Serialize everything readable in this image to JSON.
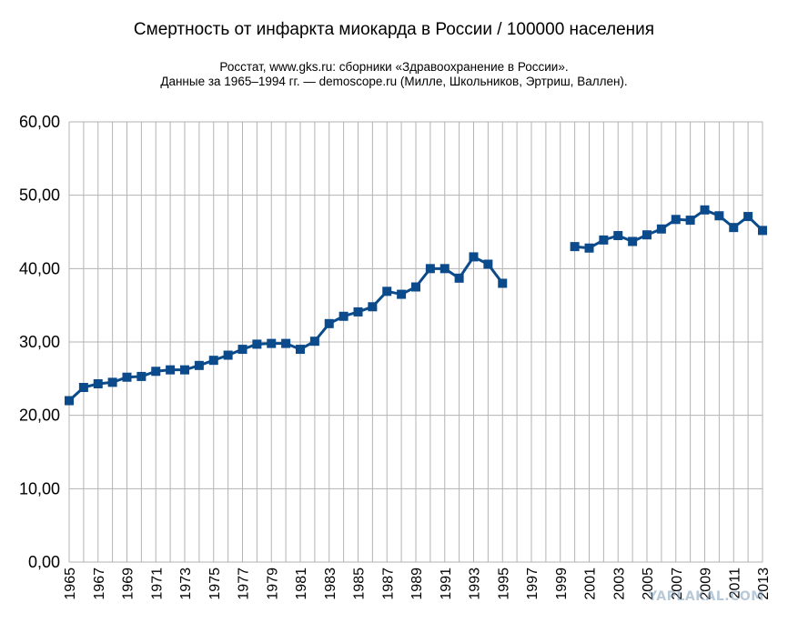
{
  "chart_data": {
    "type": "line",
    "title": "Смертность от инфаркта миокарда в России / 100000 населения",
    "subtitle_lines": [
      "Росстат, www.gks.ru: сборники «Здравоохранение в России».",
      "Данные за 1965–1994 гг. — demoscope.ru (Милле, Школьников, Эртриш, Валлен)."
    ],
    "xlabel": "",
    "ylabel": "",
    "ylim": [
      0,
      60
    ],
    "y_ticks": [
      "0,00",
      "10,00",
      "20,00",
      "30,00",
      "40,00",
      "50,00",
      "60,00"
    ],
    "x_years": [
      1965,
      1966,
      1967,
      1968,
      1969,
      1970,
      1971,
      1972,
      1973,
      1974,
      1975,
      1976,
      1977,
      1978,
      1979,
      1980,
      1981,
      1982,
      1983,
      1984,
      1985,
      1986,
      1987,
      1988,
      1989,
      1990,
      1991,
      1992,
      1993,
      1994,
      1995,
      1996,
      1997,
      1998,
      1999,
      2000,
      2001,
      2002,
      2003,
      2004,
      2005,
      2006,
      2007,
      2008,
      2009,
      2010,
      2011,
      2012,
      2013
    ],
    "x_tick_labels": [
      "1965",
      "1967",
      "1969",
      "1971",
      "1973",
      "1975",
      "1977",
      "1979",
      "1981",
      "1983",
      "1985",
      "1987",
      "1989",
      "1991",
      "1993",
      "1995",
      "1997",
      "1999",
      "2001",
      "2003",
      "2005",
      "2007",
      "2009",
      "2011",
      "2013"
    ],
    "series": [
      {
        "name": "",
        "color": "#0b4a8b",
        "marker": "square",
        "values": [
          22.0,
          23.8,
          24.3,
          24.5,
          25.2,
          25.3,
          26.0,
          26.2,
          26.2,
          26.8,
          27.5,
          28.2,
          29.0,
          29.7,
          29.8,
          29.8,
          29.0,
          30.1,
          32.5,
          33.5,
          34.1,
          34.8,
          36.9,
          36.5,
          37.5,
          40.0,
          40.0,
          38.7,
          41.6,
          40.6,
          38.0,
          null,
          null,
          null,
          null,
          43.0,
          42.8,
          43.9,
          44.5,
          43.7,
          44.6,
          45.4,
          46.7,
          46.6,
          48.0,
          47.2,
          45.6,
          47.1,
          45.2
        ]
      }
    ],
    "grid": true,
    "legend": "none"
  },
  "watermark": "YAPLAKAL.COM"
}
